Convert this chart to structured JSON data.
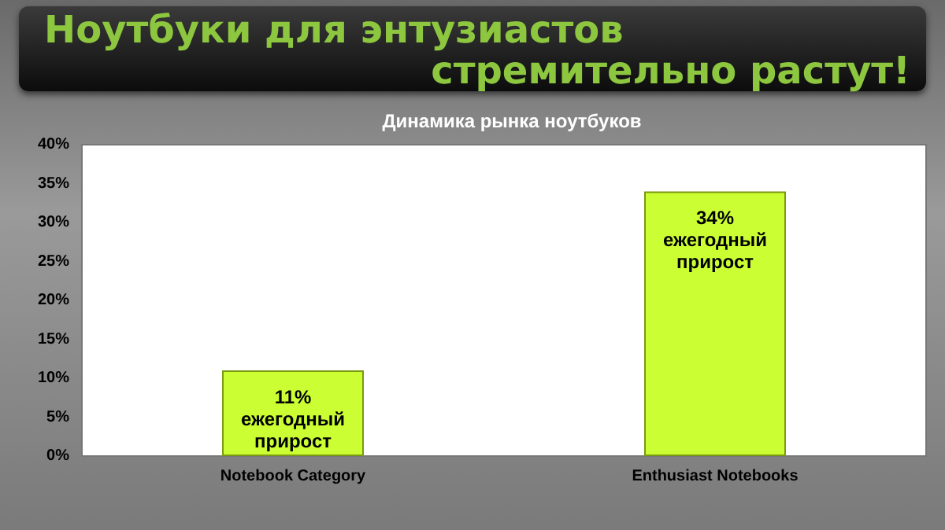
{
  "chart_data": {
    "type": "bar",
    "title": "Ноутбуки для энтузиастов стремительно растут!",
    "subtitle": "Динамика рынка ноутбуков",
    "categories": [
      "Notebook Category",
      "Enthusiast Notebooks"
    ],
    "values": [
      11,
      34
    ],
    "color": "#ccff33",
    "value_labels": [
      "11%\nежегодный\nприрост",
      "34%\nежегодный\nприрост"
    ],
    "ylim": [
      0,
      40
    ],
    "yticks": [
      {
        "value": 0,
        "label": "0%"
      },
      {
        "value": 5,
        "label": "5%"
      },
      {
        "value": 10,
        "label": "10%"
      },
      {
        "value": 15,
        "label": "15%"
      },
      {
        "value": 20,
        "label": "20%"
      },
      {
        "value": 25,
        "label": "25%"
      },
      {
        "value": 30,
        "label": "30%"
      },
      {
        "value": 35,
        "label": "35%"
      },
      {
        "value": 40,
        "label": "40%"
      }
    ],
    "grid": false
  }
}
